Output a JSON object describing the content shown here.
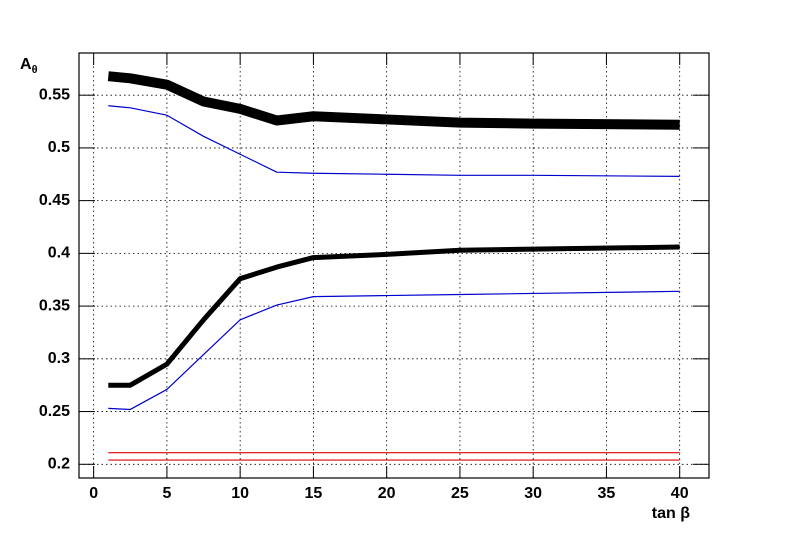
{
  "chart_data": {
    "type": "line",
    "xlabel": "tan β",
    "ylabel": "Aθ",
    "xlim": [
      -1,
      42
    ],
    "ylim": [
      0.187,
      0.59
    ],
    "xticks": [
      0,
      5,
      10,
      15,
      20,
      25,
      30,
      35,
      40
    ],
    "yticks": [
      0.2,
      0.25,
      0.3,
      0.35,
      0.4,
      0.45,
      0.5,
      0.55
    ],
    "grid": true,
    "series": [
      {
        "color": "#000000",
        "width": 10,
        "x": [
          1,
          2.5,
          5,
          7.5,
          10,
          12.5,
          15,
          20,
          25,
          30,
          40
        ],
        "values": [
          0.568,
          0.566,
          0.56,
          0.544,
          0.537,
          0.526,
          0.53,
          0.527,
          0.524,
          0.523,
          0.522
        ]
      },
      {
        "color": "#0000cc",
        "width": 1.2,
        "x": [
          1,
          2.5,
          5,
          7.5,
          10,
          12.5,
          15,
          20,
          25,
          30,
          40
        ],
        "values": [
          0.54,
          0.538,
          0.531,
          0.511,
          0.494,
          0.477,
          0.476,
          0.475,
          0.474,
          0.474,
          0.473
        ]
      },
      {
        "color": "#000000",
        "width": 5,
        "x": [
          1,
          2.5,
          5,
          7.5,
          10,
          12.5,
          15,
          20,
          25,
          30,
          40
        ],
        "values": [
          0.275,
          0.275,
          0.295,
          0.337,
          0.376,
          0.387,
          0.396,
          0.399,
          0.403,
          0.404,
          0.406
        ]
      },
      {
        "color": "#0000cc",
        "width": 1.2,
        "x": [
          1,
          2.5,
          5,
          7.5,
          10,
          12.5,
          15,
          20,
          25,
          30,
          40
        ],
        "values": [
          0.253,
          0.252,
          0.271,
          0.304,
          0.337,
          0.351,
          0.359,
          0.36,
          0.361,
          0.362,
          0.364
        ]
      },
      {
        "color": "#dd0000",
        "width": 1.2,
        "x": [
          1,
          40
        ],
        "values": [
          0.211,
          0.211
        ]
      },
      {
        "color": "#dd0000",
        "width": 1.2,
        "x": [
          1,
          40
        ],
        "values": [
          0.204,
          0.204
        ]
      }
    ]
  }
}
